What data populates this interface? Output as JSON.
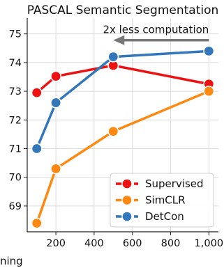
{
  "chart_data": {
    "type": "line",
    "title": "PASCAL Semantic Segmentation",
    "xlabel": "ning",
    "ylabel": "",
    "xlim": [
      50,
      1050
    ],
    "ylim": [
      68.1,
      75.55
    ],
    "x_ticks": [
      200,
      400,
      600,
      800,
      1000
    ],
    "x_tick_labels": [
      "200",
      "400",
      "600",
      "800",
      "1,000"
    ],
    "y_ticks": [
      69,
      70,
      71,
      72,
      73,
      74,
      75
    ],
    "y_tick_labels": [
      "69",
      "70",
      "71",
      "72",
      "73",
      "74",
      "75"
    ],
    "grid": true,
    "legend_position": "bottom-right",
    "series": [
      {
        "name": "Supervised",
        "color": "#ee1111",
        "x": [
          100,
          200,
          500,
          1000
        ],
        "y": [
          72.95,
          73.52,
          73.9,
          73.25
        ]
      },
      {
        "name": "SimCLR",
        "color": "#ff8811",
        "x": [
          100,
          200,
          500,
          1000
        ],
        "y": [
          68.4,
          70.3,
          71.6,
          73.0
        ]
      },
      {
        "name": "DetCon",
        "color": "#3377bb",
        "x": [
          100,
          200,
          500,
          1000
        ],
        "y": [
          71.0,
          72.6,
          74.2,
          74.4
        ]
      }
    ],
    "annotation": {
      "text": "2x less computation",
      "from": [
        1000,
        74.78
      ],
      "to": [
        500,
        74.78
      ],
      "color": "#777777"
    }
  }
}
